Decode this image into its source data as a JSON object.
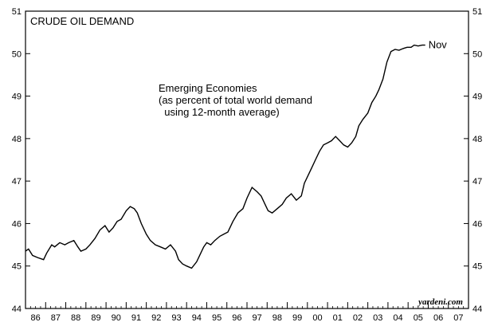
{
  "chart_data": {
    "type": "line",
    "title": "CRUDE OIL DEMAND",
    "annotation_lines": [
      "Emerging Economies",
      "(as percent of total world demand",
      "  using 12-month average)"
    ],
    "end_label": "Nov",
    "credit": "yardeni.com",
    "xlabel": "",
    "ylabel": "",
    "ylim": [
      44,
      51
    ],
    "y_ticks": [
      "44",
      "45",
      "46",
      "47",
      "48",
      "49",
      "50",
      "51"
    ],
    "x_ticks": [
      "86",
      "87",
      "88",
      "89",
      "90",
      "91",
      "92",
      "93",
      "94",
      "95",
      "96",
      "97",
      "98",
      "99",
      "00",
      "01",
      "02",
      "03",
      "04",
      "05",
      "06",
      "07"
    ],
    "xlim": [
      1986,
      2008
    ],
    "grid": false,
    "series": [
      {
        "x": [
          1986.0,
          1986.15,
          1986.35,
          1986.6,
          1986.9,
          1987.05,
          1987.3,
          1987.45,
          1987.7,
          1987.95,
          1988.15,
          1988.4,
          1988.6,
          1988.75,
          1989.0,
          1989.2,
          1989.45,
          1989.7,
          1989.95,
          1990.15,
          1990.35,
          1990.55,
          1990.75,
          1991.0,
          1991.2,
          1991.4,
          1991.55,
          1991.75,
          1992.0,
          1992.2,
          1992.45,
          1992.7,
          1992.95,
          1993.2,
          1993.45,
          1993.6,
          1993.8,
          1994.0,
          1994.25,
          1994.5,
          1994.7,
          1994.85,
          1995.0,
          1995.2,
          1995.4,
          1995.65,
          1995.85,
          1996.05,
          1996.3,
          1996.55,
          1996.8,
          1997.0,
          1997.25,
          1997.5,
          1997.7,
          1997.9,
          1998.05,
          1998.25,
          1998.5,
          1998.75,
          1998.95,
          1999.2,
          1999.45,
          1999.7,
          1999.85,
          2000.05,
          2000.2,
          2000.4,
          2000.6,
          2000.8,
          2001.0,
          2001.2,
          2001.4,
          2001.6,
          2001.8,
          2002.0,
          2002.2,
          2002.4,
          2002.55,
          2002.75,
          2003.0,
          2003.2,
          2003.4,
          2003.55,
          2003.75,
          2003.95,
          2004.15,
          2004.35,
          2004.55,
          2004.75,
          2004.95,
          2005.15,
          2005.3,
          2005.5,
          2005.7,
          2005.85
        ],
        "y": [
          45.35,
          45.4,
          45.25,
          45.2,
          45.15,
          45.3,
          45.5,
          45.45,
          45.55,
          45.5,
          45.55,
          45.6,
          45.45,
          45.35,
          45.4,
          45.5,
          45.65,
          45.85,
          45.95,
          45.8,
          45.9,
          46.05,
          46.1,
          46.3,
          46.4,
          46.35,
          46.25,
          46.0,
          45.75,
          45.6,
          45.5,
          45.45,
          45.4,
          45.5,
          45.35,
          45.15,
          45.05,
          45.0,
          44.95,
          45.1,
          45.3,
          45.45,
          45.55,
          45.5,
          45.6,
          45.7,
          45.75,
          45.8,
          46.05,
          46.25,
          46.35,
          46.6,
          46.85,
          46.75,
          46.65,
          46.45,
          46.3,
          46.25,
          46.35,
          46.45,
          46.6,
          46.7,
          46.55,
          46.65,
          46.95,
          47.15,
          47.3,
          47.5,
          47.7,
          47.85,
          47.9,
          47.95,
          48.05,
          47.95,
          47.85,
          47.8,
          47.9,
          48.05,
          48.3,
          48.45,
          48.6,
          48.85,
          49.0,
          49.15,
          49.4,
          49.8,
          50.05,
          50.1,
          50.08,
          50.12,
          50.15,
          50.15,
          50.2,
          50.18,
          50.2,
          50.2
        ]
      }
    ]
  }
}
